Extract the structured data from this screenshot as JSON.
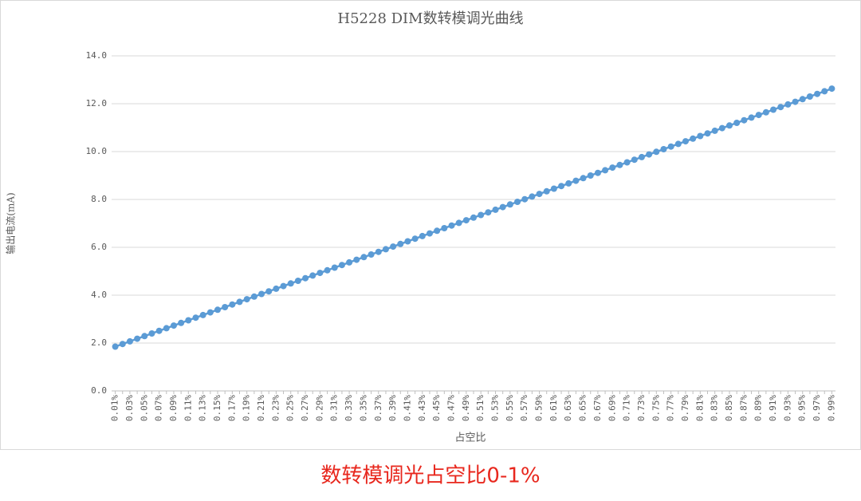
{
  "chart_data": {
    "type": "line",
    "title": "H5228 DIM数转模调光曲线",
    "x_label": "占空比",
    "y_label": "输出电流(mA)",
    "categories": [
      "0.01%",
      null,
      "0.03%",
      null,
      "0.05%",
      null,
      "0.07%",
      null,
      "0.09%",
      null,
      "0.11%",
      null,
      "0.13%",
      null,
      "0.15%",
      null,
      "0.17%",
      null,
      "0.19%",
      null,
      "0.21%",
      null,
      "0.23%",
      null,
      "0.25%",
      null,
      "0.27%",
      null,
      "0.29%",
      null,
      "0.31%",
      null,
      "0.33%",
      null,
      "0.35%",
      null,
      "0.37%",
      null,
      "0.39%",
      null,
      "0.41%",
      null,
      "0.43%",
      null,
      "0.45%",
      null,
      "0.47%",
      null,
      "0.49%",
      null,
      "0.51%",
      null,
      "0.53%",
      null,
      "0.55%",
      null,
      "0.57%",
      null,
      "0.59%",
      null,
      "0.61%",
      null,
      "0.63%",
      null,
      "0.65%",
      null,
      "0.67%",
      null,
      "0.69%",
      null,
      "0.71%",
      null,
      "0.73%",
      null,
      "0.75%",
      null,
      "0.77%",
      null,
      "0.79%",
      null,
      "0.81%",
      null,
      "0.83%",
      null,
      "0.85%",
      null,
      "0.87%",
      null,
      "0.89%",
      null,
      "0.91%",
      null,
      "0.93%",
      null,
      "0.95%",
      null,
      "0.97%",
      null,
      "0.99%"
    ],
    "values": [
      1.85,
      1.96,
      2.07,
      2.18,
      2.29,
      2.4,
      2.51,
      2.62,
      2.73,
      2.84,
      2.95,
      3.06,
      3.17,
      3.28,
      3.39,
      3.5,
      3.61,
      3.72,
      3.83,
      3.94,
      4.05,
      4.16,
      4.27,
      4.38,
      4.49,
      4.6,
      4.71,
      4.82,
      4.93,
      5.04,
      5.15,
      5.26,
      5.37,
      5.48,
      5.59,
      5.7,
      5.81,
      5.92,
      6.03,
      6.14,
      6.25,
      6.36,
      6.47,
      6.58,
      6.69,
      6.8,
      6.91,
      7.02,
      7.13,
      7.24,
      7.35,
      7.46,
      7.57,
      7.68,
      7.79,
      7.9,
      8.01,
      8.12,
      8.23,
      8.34,
      8.45,
      8.56,
      8.67,
      8.78,
      8.89,
      9.0,
      9.11,
      9.22,
      9.33,
      9.44,
      9.55,
      9.66,
      9.77,
      9.88,
      9.99,
      10.1,
      10.21,
      10.32,
      10.43,
      10.54,
      10.65,
      10.76,
      10.87,
      10.98,
      11.09,
      11.2,
      11.31,
      11.42,
      11.53,
      11.64,
      11.75,
      11.86,
      11.97,
      12.08,
      12.19,
      12.3,
      12.41,
      12.52,
      12.63
    ],
    "color": "#5b9bd5",
    "ylim": [
      0,
      14
    ],
    "yticks": [
      {
        "value": 0,
        "label": "0.0"
      },
      {
        "value": 2,
        "label": "2.0"
      },
      {
        "value": 4,
        "label": "4.0"
      },
      {
        "value": 6,
        "label": "6.0"
      },
      {
        "value": 8,
        "label": "8.0"
      },
      {
        "value": 10,
        "label": "10.0"
      },
      {
        "value": 12,
        "label": "12.0"
      },
      {
        "value": 14,
        "label": "14.0"
      }
    ],
    "grid": true
  },
  "caption": "数转模调光占空比0-1%"
}
